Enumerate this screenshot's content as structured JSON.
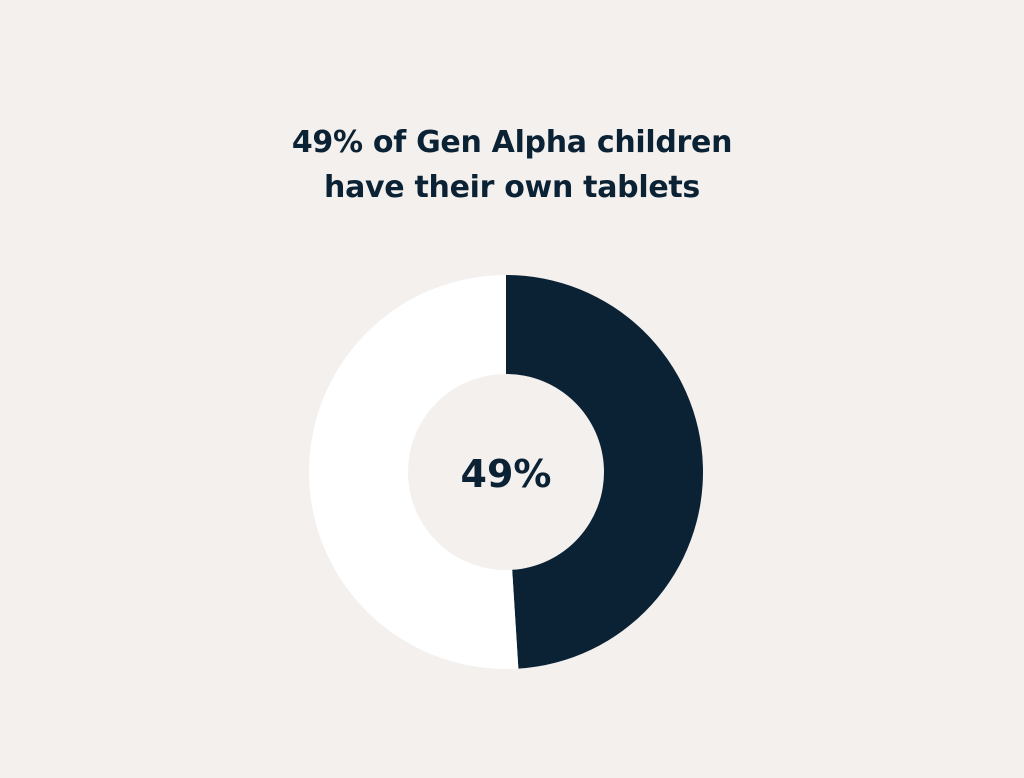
{
  "colors": {
    "background": "#f3f0ee",
    "primary": "#0b2235",
    "remainder": "#ffffff"
  },
  "chart_data": {
    "type": "pie",
    "style": "donut",
    "title_lines": [
      "49% of Gen Alpha children",
      "have their own tablets"
    ],
    "center_label": "49%",
    "slices": [
      {
        "value": 49,
        "color": "#0b2235"
      },
      {
        "value": 51,
        "color": "#ffffff"
      }
    ]
  }
}
